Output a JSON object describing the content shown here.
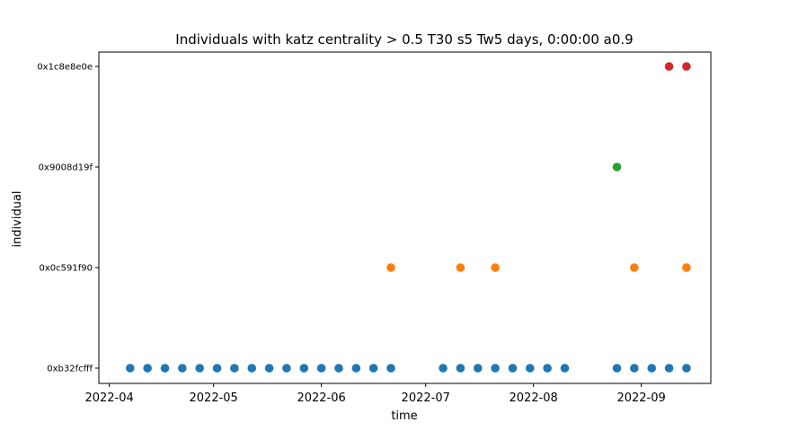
{
  "chart_data": {
    "type": "scatter",
    "title": "Individuals with katz centrality > 0.5 T30 s5 Tw5 days, 0:00:00 a0.9",
    "xlabel": "time",
    "ylabel": "individual",
    "xlim": [
      "2022-03-29",
      "2022-09-21"
    ],
    "xticks": [
      "2022-04",
      "2022-05",
      "2022-06",
      "2022-07",
      "2022-08",
      "2022-09"
    ],
    "categories": [
      "0xb32fcfff",
      "0x0c591f90",
      "0x9008d19f",
      "0x1c8e8e0e"
    ],
    "grid": false,
    "series": [
      {
        "category": "0xb32fcfff",
        "color": "#1f77b4",
        "x": [
          "2022-04-07",
          "2022-04-12",
          "2022-04-17",
          "2022-04-22",
          "2022-04-27",
          "2022-05-02",
          "2022-05-07",
          "2022-05-12",
          "2022-05-17",
          "2022-05-22",
          "2022-05-27",
          "2022-06-01",
          "2022-06-06",
          "2022-06-11",
          "2022-06-16",
          "2022-06-21",
          "2022-07-06",
          "2022-07-11",
          "2022-07-16",
          "2022-07-21",
          "2022-07-26",
          "2022-07-31",
          "2022-08-05",
          "2022-08-10",
          "2022-08-25",
          "2022-08-30",
          "2022-09-04",
          "2022-09-09",
          "2022-09-14"
        ]
      },
      {
        "category": "0x0c591f90",
        "color": "#ff7f0e",
        "x": [
          "2022-06-21",
          "2022-07-11",
          "2022-07-21",
          "2022-08-30",
          "2022-09-14"
        ]
      },
      {
        "category": "0x9008d19f",
        "color": "#2ca02c",
        "x": [
          "2022-08-25"
        ]
      },
      {
        "category": "0x1c8e8e0e",
        "color": "#d62728",
        "x": [
          "2022-09-09",
          "2022-09-14"
        ]
      }
    ]
  }
}
